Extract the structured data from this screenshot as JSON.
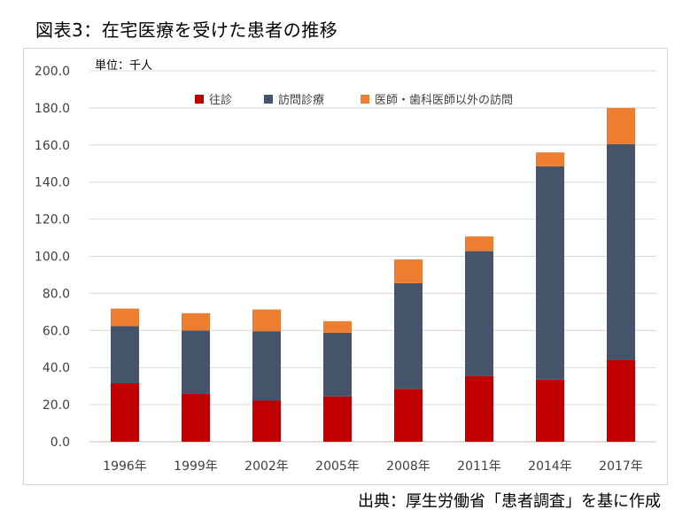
{
  "figure_title": "図表3：在宅医療を受けた患者の推移",
  "source_note": "出典：厚生労働省「患者調査」を基に作成",
  "chart_data": {
    "type": "bar",
    "stacked": true,
    "unit_label": "単位：千人",
    "categories": [
      "1996年",
      "1999年",
      "2002年",
      "2005年",
      "2008年",
      "2011年",
      "2014年",
      "2017年"
    ],
    "series": [
      {
        "name": "往診",
        "color": "#c00000",
        "values": [
          31.5,
          25.8,
          22.2,
          24.5,
          28.5,
          35.5,
          33.5,
          44.2
        ]
      },
      {
        "name": "訪問診療",
        "color": "#44546a",
        "values": [
          30.8,
          34.2,
          37.4,
          34.3,
          57.0,
          67.3,
          115.0,
          116.3
        ]
      },
      {
        "name": "医師・歯科医師以外の訪問",
        "color": "#ed7d31",
        "values": [
          9.5,
          9.3,
          11.7,
          6.2,
          12.8,
          7.9,
          7.5,
          19.5
        ]
      }
    ],
    "ylim": [
      0,
      200
    ],
    "yticks": [
      "0.0",
      "20.0",
      "40.0",
      "60.0",
      "80.0",
      "100.0",
      "120.0",
      "140.0",
      "160.0",
      "180.0",
      "200.0"
    ],
    "grid": true,
    "legend_position": "top"
  }
}
